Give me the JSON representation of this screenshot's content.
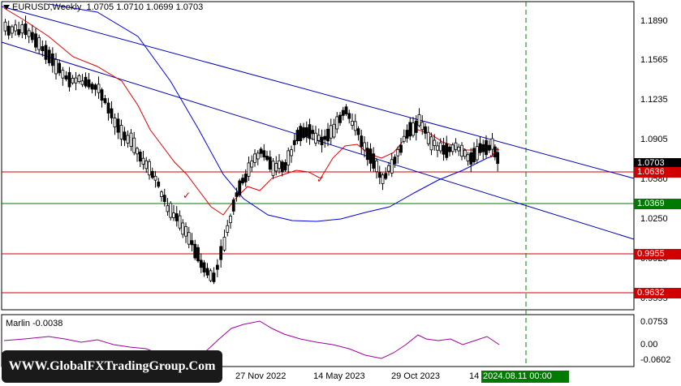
{
  "header": {
    "symbol": "EURUSD,Weekly",
    "ohlc": "1.0705 1.0710 1.0699 1.0703"
  },
  "price_axis": {
    "ticks": [
      "1.1890",
      "1.1565",
      "1.1235",
      "1.0905",
      "1.0580",
      "1.0250",
      "0.9920",
      "0.9595"
    ]
  },
  "levels": [
    {
      "value": "1.0703",
      "bg": "#000000",
      "line": null
    },
    {
      "value": "1.0636",
      "bg": "#d00000",
      "line": "#d00000"
    },
    {
      "value": "1.0369",
      "bg": "#007a00",
      "line": "#007a00"
    },
    {
      "value": "0.9955",
      "bg": "#d00000",
      "line": "#d00000"
    },
    {
      "value": "0.9632",
      "bg": "#d00000",
      "line": "#d00000"
    }
  ],
  "indicator": {
    "label": "Marlin -0.0038",
    "ticks": [
      "0.0753",
      "0.00",
      "-0.0602"
    ],
    "color": "#a000a0"
  },
  "time_axis": {
    "labels": [
      "27 Nov 2022",
      "14 May 2023",
      "29 Oct 2023",
      "14"
    ],
    "highlight": "2024.08.11 00:00"
  },
  "watermark": "WWW.GlobalFXTradingGroup.Com",
  "colors": {
    "trendline": "#0000b0",
    "ma_fast": "#e00000",
    "ma_slow": "#0000e0",
    "candle": "#000000",
    "future_line": "#008000"
  }
}
